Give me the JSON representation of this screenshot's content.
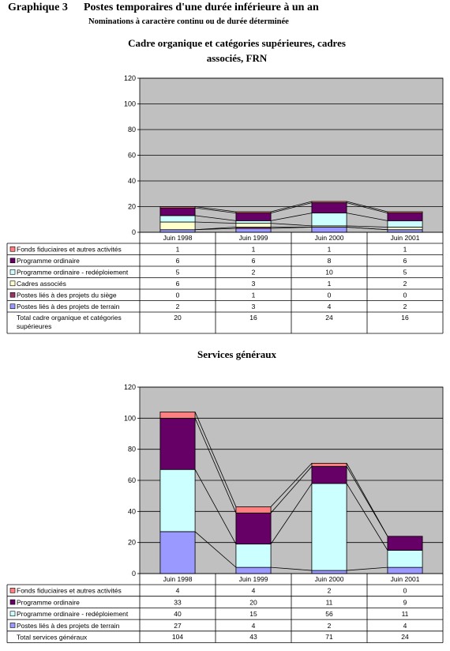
{
  "header": {
    "number": "Graphique 3",
    "title": "Postes temporaires d'une durée inférieure à un an",
    "subtitle": "Nominations à caractère continu ou de durée déterminée"
  },
  "chart_data": [
    {
      "type": "bar",
      "stacked": true,
      "title_line1": "Cadre organique et catégories supérieures, cadres",
      "title_line2": "associés, FRN",
      "categories": [
        "Juin 1998",
        "Juin 1999",
        "Juin 2000",
        "Juin 2001"
      ],
      "ylim": [
        0,
        120
      ],
      "yticks": [
        0,
        20,
        40,
        60,
        80,
        100,
        120
      ],
      "grid": true,
      "series": [
        {
          "name": "Postes liés à des projets de terrain",
          "color": "#9999ff",
          "values": [
            2,
            3,
            4,
            2
          ]
        },
        {
          "name": "Postes liés à des projets du siège",
          "color": "#993366",
          "values": [
            0,
            1,
            0,
            0
          ]
        },
        {
          "name": "Cadres associés",
          "color": "#ffffcc",
          "values": [
            6,
            3,
            1,
            2
          ]
        },
        {
          "name": "Programme ordinaire - redéploiement",
          "color": "#ccffff",
          "values": [
            5,
            2,
            10,
            5
          ]
        },
        {
          "name": "Programme ordinaire",
          "color": "#660066",
          "values": [
            6,
            6,
            8,
            6
          ]
        },
        {
          "name": "Fonds fiduciaires et autres activités",
          "color": "#ff8080",
          "values": [
            1,
            1,
            1,
            1
          ]
        }
      ],
      "total_row": {
        "name": "Total cadre organique et catégories supérieures",
        "values": [
          20,
          16,
          24,
          16
        ]
      }
    },
    {
      "type": "bar",
      "stacked": true,
      "title_line1": "Services généraux",
      "title_line2": "",
      "categories": [
        "Juin 1998",
        "Juin 1999",
        "Juin 2000",
        "Juin 2001"
      ],
      "ylim": [
        0,
        120
      ],
      "yticks": [
        0,
        20,
        40,
        60,
        80,
        100,
        120
      ],
      "grid": true,
      "series": [
        {
          "name": "Postes liés à des projets de terrain",
          "color": "#9999ff",
          "values": [
            27,
            4,
            2,
            4
          ]
        },
        {
          "name": "Programme ordinaire - redéploiement",
          "color": "#ccffff",
          "values": [
            40,
            15,
            56,
            11
          ]
        },
        {
          "name": "Programme ordinaire",
          "color": "#660066",
          "values": [
            33,
            20,
            11,
            9
          ]
        },
        {
          "name": "Fonds fiduciaires et autres activités",
          "color": "#ff8080",
          "values": [
            4,
            4,
            2,
            0
          ]
        }
      ],
      "total_row": {
        "name": "Total services généraux",
        "values": [
          104,
          43,
          71,
          24
        ]
      }
    }
  ]
}
